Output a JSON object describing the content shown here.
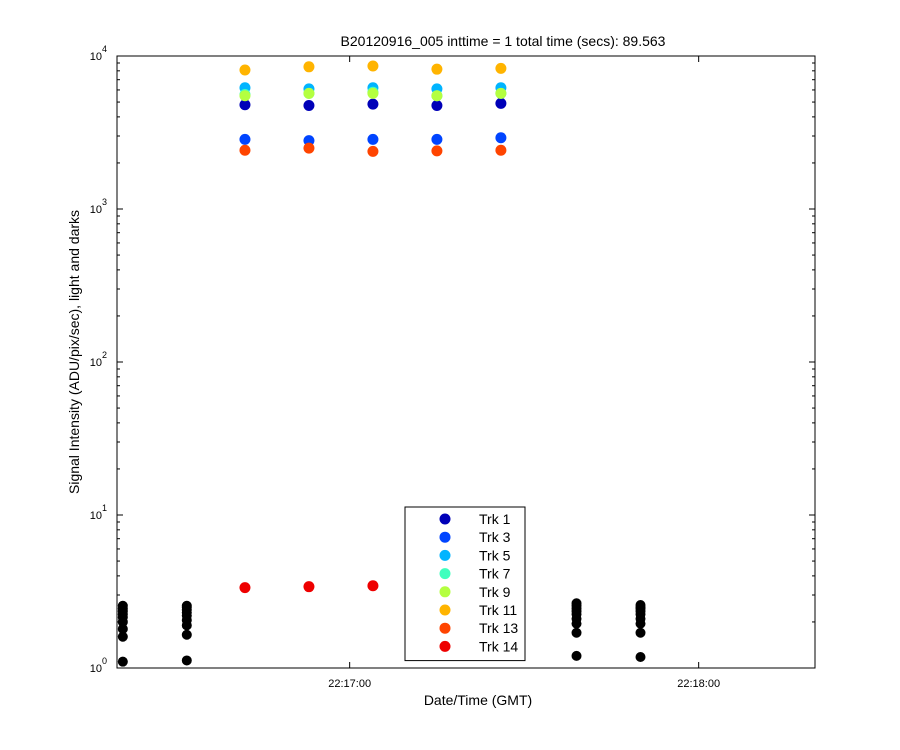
{
  "chart_data": {
    "type": "scatter",
    "title": "B20120916_005 inttime = 1 total time (secs): 89.563",
    "xlabel": "Date/Time (GMT)",
    "ylabel": "Signal Intensity (ADU/pix/sec), light and darks",
    "y_scale": "log",
    "ylim": [
      1,
      10000
    ],
    "y_ticks": [
      {
        "value": 1,
        "base": "10",
        "exp": "0"
      },
      {
        "value": 10,
        "base": "10",
        "exp": "1"
      },
      {
        "value": 100,
        "base": "10",
        "exp": "2"
      },
      {
        "value": 1000,
        "base": "10",
        "exp": "3"
      },
      {
        "value": 10000,
        "base": "10",
        "exp": "4"
      }
    ],
    "xlim": [
      "22:16:20",
      "22:18:20"
    ],
    "x_ticks": [
      {
        "time": "22:17:00",
        "label": "22:17:00"
      },
      {
        "time": "22:18:00",
        "label": "22:18:00"
      }
    ],
    "grid": false,
    "legend_position": "bottom-center",
    "series": [
      {
        "name": "Trk 1",
        "color": "#0000b8",
        "points": [
          [
            "22:16:42",
            4800
          ],
          [
            "22:16:53",
            4750
          ],
          [
            "22:17:04",
            4850
          ],
          [
            "22:17:15",
            4750
          ],
          [
            "22:17:26",
            4900
          ]
        ]
      },
      {
        "name": "Trk 3",
        "color": "#0044ff",
        "points": [
          [
            "22:16:42",
            2850
          ],
          [
            "22:16:53",
            2800
          ],
          [
            "22:17:04",
            2850
          ],
          [
            "22:17:15",
            2850
          ],
          [
            "22:17:26",
            2920
          ]
        ]
      },
      {
        "name": "Trk 5",
        "color": "#00b4ff",
        "points": [
          [
            "22:16:42",
            6200
          ],
          [
            "22:16:53",
            6100
          ],
          [
            "22:17:04",
            6200
          ],
          [
            "22:17:15",
            6100
          ],
          [
            "22:17:26",
            6200
          ]
        ]
      },
      {
        "name": "Trk 7",
        "color": "#40ffbe",
        "points": [
          [
            "22:16:42",
            5600
          ],
          [
            "22:16:53",
            5700
          ],
          [
            "22:17:04",
            5800
          ],
          [
            "22:17:15",
            5500
          ],
          [
            "22:17:26",
            5700
          ]
        ]
      },
      {
        "name": "Trk 9",
        "color": "#b4ff40",
        "points": [
          [
            "22:16:42",
            5500
          ],
          [
            "22:16:53",
            5700
          ],
          [
            "22:17:04",
            5700
          ],
          [
            "22:17:15",
            5500
          ],
          [
            "22:17:26",
            5700
          ]
        ]
      },
      {
        "name": "Trk 11",
        "color": "#ffb400",
        "points": [
          [
            "22:16:42",
            8100
          ],
          [
            "22:16:53",
            8500
          ],
          [
            "22:17:04",
            8600
          ],
          [
            "22:17:15",
            8200
          ],
          [
            "22:17:26",
            8300
          ]
        ]
      },
      {
        "name": "Trk 13",
        "color": "#ff4400",
        "points": [
          [
            "22:16:42",
            2420
          ],
          [
            "22:16:53",
            2500
          ],
          [
            "22:17:04",
            2380
          ],
          [
            "22:17:15",
            2400
          ],
          [
            "22:17:26",
            2420
          ]
        ]
      },
      {
        "name": "Trk 14",
        "color": "#ee0000",
        "points": [
          [
            "22:16:42",
            3.35
          ],
          [
            "22:16:53",
            3.4
          ],
          [
            "22:17:04",
            3.45
          ]
        ]
      }
    ],
    "dark_points": {
      "color": "#000000",
      "points": [
        [
          "22:16:21",
          1.1
        ],
        [
          "22:16:21",
          1.6
        ],
        [
          "22:16:21",
          1.8
        ],
        [
          "22:16:21",
          2.0
        ],
        [
          "22:16:21",
          2.15
        ],
        [
          "22:16:21",
          2.25
        ],
        [
          "22:16:21",
          2.35
        ],
        [
          "22:16:21",
          2.45
        ],
        [
          "22:16:21",
          2.55
        ],
        [
          "22:16:32",
          1.12
        ],
        [
          "22:16:32",
          1.65
        ],
        [
          "22:16:32",
          1.9
        ],
        [
          "22:16:32",
          2.05
        ],
        [
          "22:16:32",
          2.2
        ],
        [
          "22:16:32",
          2.3
        ],
        [
          "22:16:32",
          2.4
        ],
        [
          "22:16:32",
          2.5
        ],
        [
          "22:16:32",
          2.55
        ],
        [
          "22:17:39",
          1.2
        ],
        [
          "22:17:39",
          1.7
        ],
        [
          "22:17:39",
          1.95
        ],
        [
          "22:17:39",
          2.1
        ],
        [
          "22:17:39",
          2.25
        ],
        [
          "22:17:39",
          2.35
        ],
        [
          "22:17:39",
          2.45
        ],
        [
          "22:17:39",
          2.55
        ],
        [
          "22:17:39",
          2.65
        ],
        [
          "22:17:50",
          1.18
        ],
        [
          "22:17:50",
          1.7
        ],
        [
          "22:17:50",
          1.95
        ],
        [
          "22:17:50",
          2.1
        ],
        [
          "22:17:50",
          2.25
        ],
        [
          "22:17:50",
          2.35
        ],
        [
          "22:17:50",
          2.45
        ],
        [
          "22:17:50",
          2.5
        ],
        [
          "22:17:50",
          2.58
        ]
      ]
    }
  }
}
